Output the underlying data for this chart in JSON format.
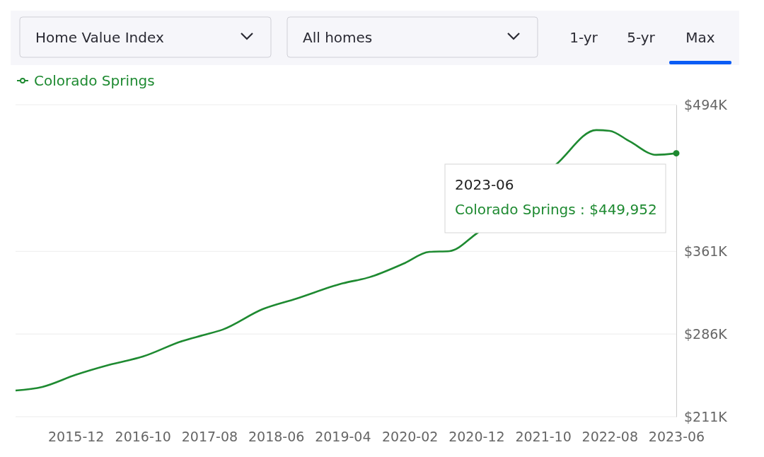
{
  "chart_data": {
    "type": "line",
    "x": [
      "2015-03",
      "2015-07",
      "2015-12",
      "2016-05",
      "2016-10",
      "2017-04",
      "2017-07",
      "2017-10",
      "2018-04",
      "2018-09",
      "2019-04",
      "2019-08",
      "2020-01",
      "2020-05",
      "2020-08",
      "2020-12",
      "2021-12",
      "2022-06",
      "2022-08",
      "2022-11",
      "2023-03",
      "2023-06"
    ],
    "series": [
      {
        "name": "Colorado Springs",
        "color": "#1e8a31",
        "values": [
          234700,
          238000,
          249000,
          258000,
          265500,
          279700,
          284800,
          290000,
          308500,
          318000,
          331900,
          337500,
          349600,
          360500,
          361200,
          377000,
          440000,
          471000,
          470300,
          460700,
          448500,
          449952
        ]
      }
    ],
    "xlim": [
      "2015-03",
      "2023-06"
    ],
    "xticks": [
      "2015-12",
      "2016-10",
      "2017-08",
      "2018-06",
      "2019-04",
      "2020-02",
      "2020-12",
      "2021-10",
      "2022-08",
      "2023-06"
    ],
    "ylim": [
      211000,
      494000
    ],
    "yticks": [
      {
        "value": 211000,
        "label": "$211K"
      },
      {
        "value": 286000,
        "label": "$286K"
      },
      {
        "value": 361000,
        "label": "$361K"
      },
      {
        "value": 494000,
        "label": "$494K"
      }
    ],
    "grid": "y",
    "legend": "top left",
    "marker": "none",
    "line_style": "solid",
    "annotations": [
      "Home Value Index",
      "All homes",
      "1-yr",
      "5-yr",
      "Max",
      "2023-06",
      "Colorado Springs : $449,952"
    ]
  }
}
